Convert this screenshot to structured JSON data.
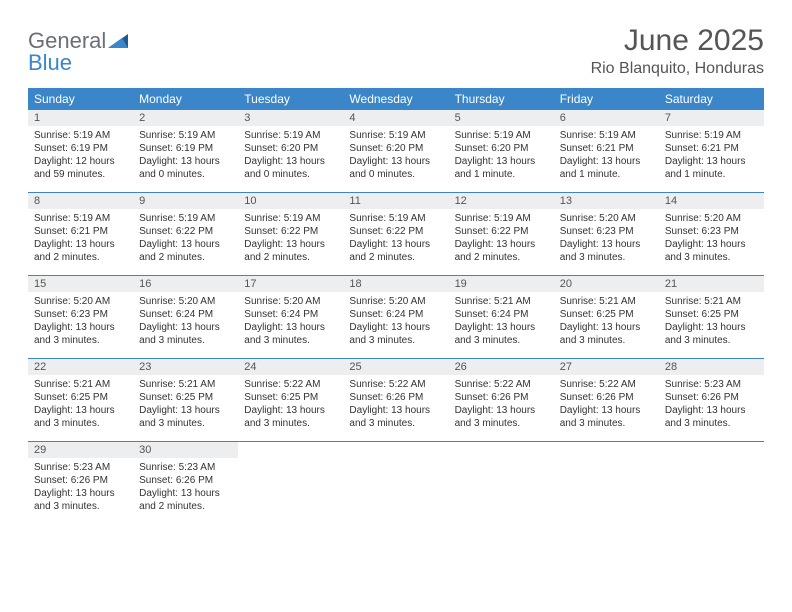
{
  "brand": {
    "name_part1": "General",
    "name_part2": "Blue"
  },
  "header": {
    "title": "June 2025",
    "location": "Rio Blanquito, Honduras"
  },
  "colors": {
    "accent": "#3a86c8",
    "weekday_bg": "#3a86c8",
    "weekday_text": "#ffffff",
    "daynum_bg": "#eceeef",
    "text": "#333333",
    "title_text": "#555555"
  },
  "calendar": {
    "weekdays": [
      "Sunday",
      "Monday",
      "Tuesday",
      "Wednesday",
      "Thursday",
      "Friday",
      "Saturday"
    ],
    "weeks": [
      [
        {
          "day": "1",
          "sunrise": "Sunrise: 5:19 AM",
          "sunset": "Sunset: 6:19 PM",
          "daylight1": "Daylight: 12 hours",
          "daylight2": "and 59 minutes."
        },
        {
          "day": "2",
          "sunrise": "Sunrise: 5:19 AM",
          "sunset": "Sunset: 6:19 PM",
          "daylight1": "Daylight: 13 hours",
          "daylight2": "and 0 minutes."
        },
        {
          "day": "3",
          "sunrise": "Sunrise: 5:19 AM",
          "sunset": "Sunset: 6:20 PM",
          "daylight1": "Daylight: 13 hours",
          "daylight2": "and 0 minutes."
        },
        {
          "day": "4",
          "sunrise": "Sunrise: 5:19 AM",
          "sunset": "Sunset: 6:20 PM",
          "daylight1": "Daylight: 13 hours",
          "daylight2": "and 0 minutes."
        },
        {
          "day": "5",
          "sunrise": "Sunrise: 5:19 AM",
          "sunset": "Sunset: 6:20 PM",
          "daylight1": "Daylight: 13 hours",
          "daylight2": "and 1 minute."
        },
        {
          "day": "6",
          "sunrise": "Sunrise: 5:19 AM",
          "sunset": "Sunset: 6:21 PM",
          "daylight1": "Daylight: 13 hours",
          "daylight2": "and 1 minute."
        },
        {
          "day": "7",
          "sunrise": "Sunrise: 5:19 AM",
          "sunset": "Sunset: 6:21 PM",
          "daylight1": "Daylight: 13 hours",
          "daylight2": "and 1 minute."
        }
      ],
      [
        {
          "day": "8",
          "sunrise": "Sunrise: 5:19 AM",
          "sunset": "Sunset: 6:21 PM",
          "daylight1": "Daylight: 13 hours",
          "daylight2": "and 2 minutes."
        },
        {
          "day": "9",
          "sunrise": "Sunrise: 5:19 AM",
          "sunset": "Sunset: 6:22 PM",
          "daylight1": "Daylight: 13 hours",
          "daylight2": "and 2 minutes."
        },
        {
          "day": "10",
          "sunrise": "Sunrise: 5:19 AM",
          "sunset": "Sunset: 6:22 PM",
          "daylight1": "Daylight: 13 hours",
          "daylight2": "and 2 minutes."
        },
        {
          "day": "11",
          "sunrise": "Sunrise: 5:19 AM",
          "sunset": "Sunset: 6:22 PM",
          "daylight1": "Daylight: 13 hours",
          "daylight2": "and 2 minutes."
        },
        {
          "day": "12",
          "sunrise": "Sunrise: 5:19 AM",
          "sunset": "Sunset: 6:22 PM",
          "daylight1": "Daylight: 13 hours",
          "daylight2": "and 2 minutes."
        },
        {
          "day": "13",
          "sunrise": "Sunrise: 5:20 AM",
          "sunset": "Sunset: 6:23 PM",
          "daylight1": "Daylight: 13 hours",
          "daylight2": "and 3 minutes."
        },
        {
          "day": "14",
          "sunrise": "Sunrise: 5:20 AM",
          "sunset": "Sunset: 6:23 PM",
          "daylight1": "Daylight: 13 hours",
          "daylight2": "and 3 minutes."
        }
      ],
      [
        {
          "day": "15",
          "sunrise": "Sunrise: 5:20 AM",
          "sunset": "Sunset: 6:23 PM",
          "daylight1": "Daylight: 13 hours",
          "daylight2": "and 3 minutes."
        },
        {
          "day": "16",
          "sunrise": "Sunrise: 5:20 AM",
          "sunset": "Sunset: 6:24 PM",
          "daylight1": "Daylight: 13 hours",
          "daylight2": "and 3 minutes."
        },
        {
          "day": "17",
          "sunrise": "Sunrise: 5:20 AM",
          "sunset": "Sunset: 6:24 PM",
          "daylight1": "Daylight: 13 hours",
          "daylight2": "and 3 minutes."
        },
        {
          "day": "18",
          "sunrise": "Sunrise: 5:20 AM",
          "sunset": "Sunset: 6:24 PM",
          "daylight1": "Daylight: 13 hours",
          "daylight2": "and 3 minutes."
        },
        {
          "day": "19",
          "sunrise": "Sunrise: 5:21 AM",
          "sunset": "Sunset: 6:24 PM",
          "daylight1": "Daylight: 13 hours",
          "daylight2": "and 3 minutes."
        },
        {
          "day": "20",
          "sunrise": "Sunrise: 5:21 AM",
          "sunset": "Sunset: 6:25 PM",
          "daylight1": "Daylight: 13 hours",
          "daylight2": "and 3 minutes."
        },
        {
          "day": "21",
          "sunrise": "Sunrise: 5:21 AM",
          "sunset": "Sunset: 6:25 PM",
          "daylight1": "Daylight: 13 hours",
          "daylight2": "and 3 minutes."
        }
      ],
      [
        {
          "day": "22",
          "sunrise": "Sunrise: 5:21 AM",
          "sunset": "Sunset: 6:25 PM",
          "daylight1": "Daylight: 13 hours",
          "daylight2": "and 3 minutes."
        },
        {
          "day": "23",
          "sunrise": "Sunrise: 5:21 AM",
          "sunset": "Sunset: 6:25 PM",
          "daylight1": "Daylight: 13 hours",
          "daylight2": "and 3 minutes."
        },
        {
          "day": "24",
          "sunrise": "Sunrise: 5:22 AM",
          "sunset": "Sunset: 6:25 PM",
          "daylight1": "Daylight: 13 hours",
          "daylight2": "and 3 minutes."
        },
        {
          "day": "25",
          "sunrise": "Sunrise: 5:22 AM",
          "sunset": "Sunset: 6:26 PM",
          "daylight1": "Daylight: 13 hours",
          "daylight2": "and 3 minutes."
        },
        {
          "day": "26",
          "sunrise": "Sunrise: 5:22 AM",
          "sunset": "Sunset: 6:26 PM",
          "daylight1": "Daylight: 13 hours",
          "daylight2": "and 3 minutes."
        },
        {
          "day": "27",
          "sunrise": "Sunrise: 5:22 AM",
          "sunset": "Sunset: 6:26 PM",
          "daylight1": "Daylight: 13 hours",
          "daylight2": "and 3 minutes."
        },
        {
          "day": "28",
          "sunrise": "Sunrise: 5:23 AM",
          "sunset": "Sunset: 6:26 PM",
          "daylight1": "Daylight: 13 hours",
          "daylight2": "and 3 minutes."
        }
      ],
      [
        {
          "day": "29",
          "sunrise": "Sunrise: 5:23 AM",
          "sunset": "Sunset: 6:26 PM",
          "daylight1": "Daylight: 13 hours",
          "daylight2": "and 3 minutes."
        },
        {
          "day": "30",
          "sunrise": "Sunrise: 5:23 AM",
          "sunset": "Sunset: 6:26 PM",
          "daylight1": "Daylight: 13 hours",
          "daylight2": "and 2 minutes."
        },
        null,
        null,
        null,
        null,
        null
      ]
    ]
  }
}
